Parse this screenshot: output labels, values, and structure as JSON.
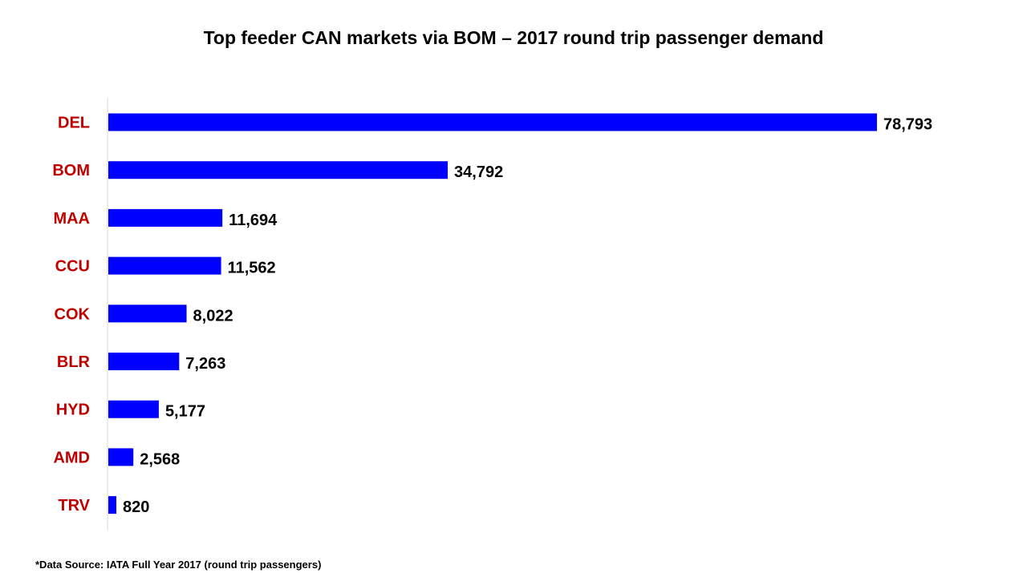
{
  "chart_data": {
    "type": "bar",
    "orientation": "horizontal",
    "title": "Top feeder CAN markets via BOM – 2017 round trip passenger demand",
    "categories": [
      "DEL",
      "BOM",
      "MAA",
      "CCU",
      "COK",
      "BLR",
      "HYD",
      "AMD",
      "TRV"
    ],
    "values": [
      78793,
      34792,
      11694,
      11562,
      8022,
      7263,
      5177,
      2568,
      820
    ],
    "value_labels": [
      "78,793",
      "34,792",
      "11,694",
      "11,562",
      "8,022",
      "7,263",
      "5,177",
      "2,568",
      "820"
    ],
    "xlabel": "",
    "ylabel": "",
    "xlim": [
      0,
      80000
    ],
    "grid": false,
    "legend": "none",
    "colors": {
      "bar": "#0000ff",
      "category_label": "#c00000",
      "value_label": "#000000",
      "axis": "#d9d9d9"
    }
  },
  "footnote": "*Data Source: IATA Full Year 2017 (round trip passengers)"
}
